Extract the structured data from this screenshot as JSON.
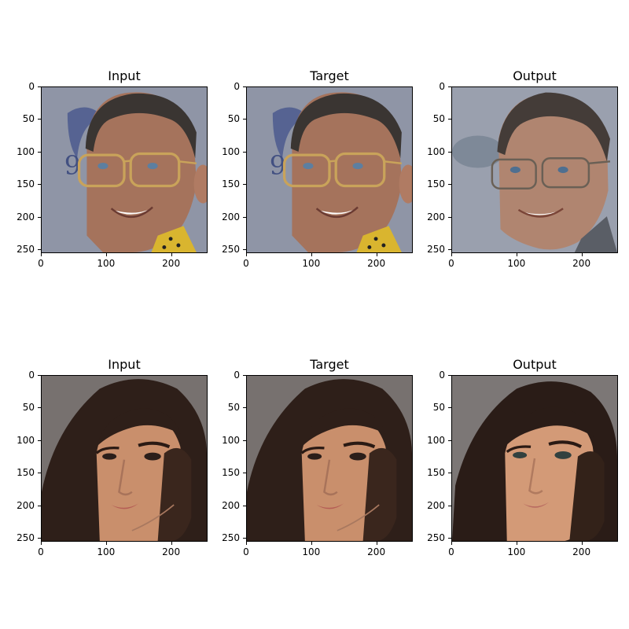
{
  "figure": {
    "rows": [
      {
        "panels": [
          {
            "title": "Input",
            "subject": "elderly-man-glasses"
          },
          {
            "title": "Target",
            "subject": "elderly-man-glasses"
          },
          {
            "title": "Output",
            "subject": "man-glasses-reconstructed"
          }
        ]
      },
      {
        "panels": [
          {
            "title": "Input",
            "subject": "woman-dark-hair"
          },
          {
            "title": "Target",
            "subject": "woman-dark-hair"
          },
          {
            "title": "Output",
            "subject": "woman-dark-hair-reconstructed"
          }
        ]
      }
    ],
    "y_ticks": [
      "0",
      "50",
      "100",
      "150",
      "200",
      "250"
    ],
    "x_ticks": [
      "0",
      "100",
      "200"
    ],
    "colors": {
      "background": "#ffffff",
      "axis": "#000000",
      "man_backdrop": "#8f95a6",
      "woman_backdrop": "#77716f"
    }
  }
}
